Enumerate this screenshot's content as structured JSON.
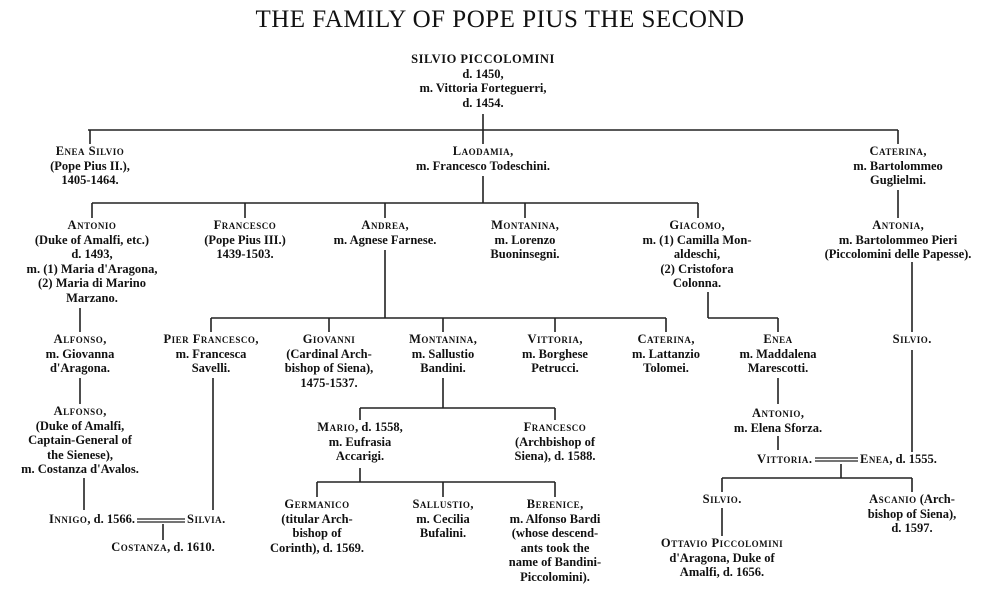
{
  "title": "THE FAMILY OF POPE PIUS THE SECOND",
  "nodes": {
    "silvio_root": {
      "name": "SILVIO PICCOLOMINI",
      "suffix": "",
      "lines": [
        "d. 1450,",
        "m. Vittoria Forteguerri,",
        "d. 1454."
      ]
    },
    "enea_silvio": {
      "name": "Enea Silvio",
      "suffix": "",
      "lines": [
        "(Pope Pius II.),",
        "1405-1464."
      ]
    },
    "laodamia": {
      "name": "Laodamia",
      "suffix": ",",
      "lines": [
        "m. Francesco Todeschini."
      ]
    },
    "caterina_1": {
      "name": "Caterina",
      "suffix": ",",
      "lines": [
        "m. Bartolommeo",
        "Guglielmi."
      ]
    },
    "antonio_1": {
      "name": "Antonio",
      "suffix": "",
      "lines": [
        "(Duke of Amalfi, etc.)",
        "d. 1493,",
        "m. (1) Maria d'Aragona,",
        "(2) Maria di Marino",
        "Marzano."
      ]
    },
    "francesco_1": {
      "name": "Francesco",
      "suffix": "",
      "lines": [
        "(Pope Pius III.)",
        "1439-1503."
      ]
    },
    "andrea": {
      "name": "Andrea",
      "suffix": ",",
      "lines": [
        "m. Agnese Farnese."
      ]
    },
    "montanina_1": {
      "name": "Montanina",
      "suffix": ",",
      "lines": [
        "m. Lorenzo",
        "Buoninsegni."
      ]
    },
    "giacomo": {
      "name": "Giacomo",
      "suffix": ",",
      "lines": [
        "m. (1) Camilla Mon-",
        "aldeschi,",
        "(2) Cristofora",
        "Colonna."
      ]
    },
    "antonia": {
      "name": "Antonia",
      "suffix": ",",
      "lines": [
        "m. Bartolommeo Pieri",
        "(Piccolomini delle Papesse)."
      ]
    },
    "alfonso_1": {
      "name": "Alfonso",
      "suffix": ",",
      "lines": [
        "m. Giovanna",
        "d'Aragona."
      ]
    },
    "alfonso_2": {
      "name": "Alfonso",
      "suffix": ",",
      "lines": [
        "(Duke of Amalfi,",
        "Captain-General of",
        "the Sienese),",
        "m. Costanza d'Avalos."
      ]
    },
    "innigo": {
      "name": "Innigo",
      "suffix": ", d. 1566.",
      "lines": []
    },
    "silvia": {
      "name": "Silvia",
      "suffix": ".",
      "lines": []
    },
    "costanza": {
      "name": "Costanza",
      "suffix": ", d. 1610.",
      "lines": []
    },
    "pier_francesco": {
      "name": "Pier Francesco",
      "suffix": ",",
      "lines": [
        "m. Francesca",
        "Savelli."
      ]
    },
    "giovanni": {
      "name": "Giovanni",
      "suffix": "",
      "lines": [
        "(Cardinal Arch-",
        "bishop of Siena),",
        "1475-1537."
      ]
    },
    "montanina_2": {
      "name": "Montanina",
      "suffix": ",",
      "lines": [
        "m. Sallustio",
        "Bandini."
      ]
    },
    "vittoria_1": {
      "name": "Vittoria",
      "suffix": ",",
      "lines": [
        "m. Borghese",
        "Petrucci."
      ]
    },
    "caterina_2": {
      "name": "Caterina",
      "suffix": ",",
      "lines": [
        "m. Lattanzio",
        "Tolomei."
      ]
    },
    "enea_2": {
      "name": "Enea",
      "suffix": "",
      "lines": [
        "m. Maddalena",
        "Marescotti."
      ]
    },
    "silvio_2": {
      "name": "Silvio",
      "suffix": ".",
      "lines": []
    },
    "mario": {
      "name": "Mario",
      "suffix": ", d. 1558,",
      "lines": [
        "m. Eufrasia",
        "Accarigi."
      ]
    },
    "francesco_2": {
      "name": "Francesco",
      "suffix": "",
      "lines": [
        "(Archbishop of",
        "Siena), d. 1588."
      ]
    },
    "antonio_2": {
      "name": "Antonio",
      "suffix": ",",
      "lines": [
        "m. Elena Sforza."
      ]
    },
    "vittoria_2": {
      "name": "Vittoria",
      "suffix": ".",
      "lines": []
    },
    "enea_3": {
      "name": "Enea",
      "suffix": ", d. 1555.",
      "lines": []
    },
    "germanico": {
      "name": "Germanico",
      "suffix": "",
      "lines": [
        "(titular Arch-",
        "bishop of",
        "Corinth), d. 1569."
      ]
    },
    "sallustio": {
      "name": "Sallustio",
      "suffix": ",",
      "lines": [
        "m. Cecilia",
        "Bufalini."
      ]
    },
    "berenice": {
      "name": "Berenice",
      "suffix": ",",
      "lines": [
        "m. Alfonso Bardi",
        "(whose descend-",
        "ants took the",
        "name of Bandini-",
        "Piccolomini)."
      ]
    },
    "silvio_3": {
      "name": "Silvio",
      "suffix": ".",
      "lines": []
    },
    "ascanio": {
      "name": "Ascanio",
      "suffix": " (Arch-",
      "lines": [
        "bishop of Siena),",
        "d. 1597."
      ]
    },
    "ottavio": {
      "name": "Ottavio Piccolomini",
      "suffix": "",
      "lines": [
        "d'Aragona, Duke of",
        "Amalfi, d. 1656."
      ]
    }
  }
}
